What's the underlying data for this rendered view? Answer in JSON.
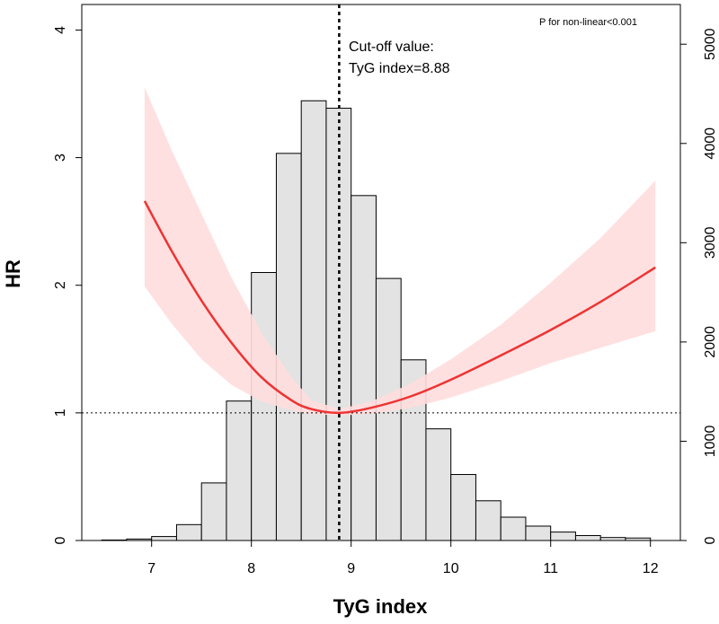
{
  "chart_data": {
    "type": "histogram+line",
    "xlabel": "TyG index",
    "ylabel_left": "HR",
    "ylabel_right": "",
    "xlim": [
      6.3,
      12.3
    ],
    "ylim_left": [
      0,
      4.2
    ],
    "ylim_right": [
      0,
      5400
    ],
    "x_ticks": [
      7,
      8,
      9,
      10,
      11,
      12
    ],
    "y_left_ticks": [
      0,
      1,
      2,
      3,
      4
    ],
    "y_right_ticks": [
      0,
      1000,
      2000,
      3000,
      4000,
      5000
    ],
    "histogram": {
      "bin_width": 0.25,
      "bins": [
        {
          "start": 6.5,
          "count": 5
        },
        {
          "start": 6.75,
          "count": 15
        },
        {
          "start": 7.0,
          "count": 40
        },
        {
          "start": 7.25,
          "count": 160
        },
        {
          "start": 7.5,
          "count": 580
        },
        {
          "start": 7.75,
          "count": 1405
        },
        {
          "start": 8.0,
          "count": 2700
        },
        {
          "start": 8.25,
          "count": 3900
        },
        {
          "start": 8.5,
          "count": 4430
        },
        {
          "start": 8.75,
          "count": 4355
        },
        {
          "start": 9.0,
          "count": 3475
        },
        {
          "start": 9.25,
          "count": 2640
        },
        {
          "start": 9.5,
          "count": 1820
        },
        {
          "start": 9.75,
          "count": 1125
        },
        {
          "start": 10.0,
          "count": 665
        },
        {
          "start": 10.25,
          "count": 400
        },
        {
          "start": 10.5,
          "count": 235
        },
        {
          "start": 10.75,
          "count": 145
        },
        {
          "start": 11.0,
          "count": 85
        },
        {
          "start": 11.25,
          "count": 50
        },
        {
          "start": 11.5,
          "count": 30
        },
        {
          "start": 11.75,
          "count": 25
        }
      ]
    },
    "hr_curve": {
      "name": "HR",
      "color": "#ee3333",
      "band_color": "#ffdddd",
      "x": [
        6.93,
        7.2,
        7.5,
        7.8,
        8.1,
        8.4,
        8.6,
        8.88,
        9.2,
        9.6,
        10.0,
        10.5,
        11.0,
        11.5,
        12.05
      ],
      "y": [
        2.66,
        2.27,
        1.88,
        1.55,
        1.28,
        1.1,
        1.03,
        1.0,
        1.04,
        1.13,
        1.26,
        1.45,
        1.65,
        1.87,
        2.14
      ],
      "lower": [
        1.99,
        1.7,
        1.42,
        1.22,
        1.09,
        1.02,
        0.99,
        0.98,
        0.99,
        1.04,
        1.12,
        1.25,
        1.39,
        1.51,
        1.64
      ],
      "upper": [
        3.55,
        3.06,
        2.56,
        2.06,
        1.63,
        1.28,
        1.1,
        1.03,
        1.09,
        1.23,
        1.42,
        1.69,
        2.02,
        2.37,
        2.82
      ]
    },
    "reference_line_hr": 1,
    "cutoff_x": 8.88,
    "annotations": {
      "cutoff_line1": "Cut-off value:",
      "cutoff_line2": "TyG index=8.88",
      "p_value": "P for non-linear<0.001"
    }
  }
}
